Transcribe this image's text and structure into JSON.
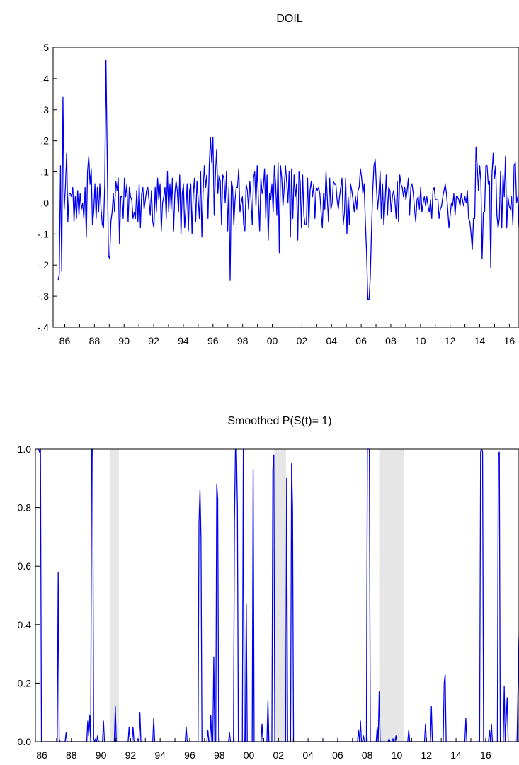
{
  "chart_data": [
    {
      "type": "line",
      "title": "DOIL",
      "xlabel": "",
      "ylabel": "",
      "x_start": 1985.833,
      "x_end": 2016.917,
      "x_ticks": [
        "86",
        "88",
        "90",
        "92",
        "94",
        "96",
        "98",
        "00",
        "02",
        "04",
        "06",
        "08",
        "10",
        "12",
        "14",
        "16"
      ],
      "y_ticks": [
        ".5",
        ".4",
        ".3",
        ".2",
        ".1",
        ".0",
        "-.1",
        "-.2",
        "-.3",
        "-.4"
      ],
      "ylim": [
        -0.4,
        0.5
      ],
      "grid": false,
      "series": [
        {
          "color": "#0000ee",
          "values": [
            -0.25,
            -0.23,
            0.12,
            -0.22,
            0.34,
            -0.02,
            0.05,
            0.16,
            -0.06,
            0.03,
            0.03,
            0.02,
            0.05,
            -0.06,
            0.02,
            -0.05,
            0.04,
            -0.04,
            0.03,
            -0.02,
            0.0,
            -0.05,
            0.05,
            -0.11,
            0.1,
            0.15,
            0.06,
            0.11,
            -0.07,
            -0.03,
            0.06,
            -0.05,
            0.05,
            -0.03,
            0.06,
            -0.02,
            -0.07,
            -0.08,
            0.06,
            0.46,
            0.15,
            -0.17,
            -0.18,
            -0.06,
            -0.03,
            0.03,
            -0.03,
            0.07,
            0.04,
            0.08,
            -0.13,
            0.02,
            0.02,
            -0.05,
            0.08,
            0.02,
            0.06,
            -0.06,
            0.05,
            0.02,
            0.01,
            -0.05,
            -0.03,
            -0.05,
            0.04,
            -0.06,
            0.06,
            -0.08,
            0.03,
            0.05,
            -0.02,
            0.01,
            0.04,
            0.05,
            0.01,
            -0.04,
            0.04,
            -0.06,
            -0.08,
            0.05,
            -0.03,
            0.08,
            0.01,
            0.06,
            -0.09,
            0.0,
            0.02,
            0.05,
            -0.05,
            0.1,
            -0.03,
            0.06,
            -0.02,
            0.08,
            -0.09,
            0.03,
            0.07,
            0.04,
            -0.03,
            0.09,
            -0.1,
            0.03,
            0.06,
            -0.08,
            -0.02,
            0.06,
            -0.09,
            0.04,
            0.06,
            -0.1,
            0.03,
            0.08,
            -0.06,
            0.07,
            0.01,
            -0.05,
            0.1,
            -0.11,
            0.04,
            0.12,
            0.05,
            0.09,
            -0.05,
            0.12,
            0.21,
            0.13,
            0.21,
            -0.04,
            0.09,
            0.17,
            0.03,
            0.09,
            0.07,
            -0.07,
            0.09,
            0.08,
            0.0,
            0.1,
            -0.09,
            0.05,
            -0.25,
            0.07,
            0.05,
            -0.07,
            0.01,
            0.05,
            0.05,
            0.11,
            -0.03,
            0.0,
            0.02,
            -0.07,
            -0.09,
            0.06,
            0.04,
            -0.02,
            0.07,
            0.01,
            -0.07,
            0.08,
            0.1,
            -0.01,
            0.12,
            0.01,
            -0.09,
            0.08,
            0.03,
            0.05,
            0.11,
            -0.05,
            0.09,
            -0.12,
            0.03,
            0.01,
            0.06,
            -0.03,
            0.12,
            0.06,
            -0.04,
            0.13,
            -0.16,
            0.12,
            0.08,
            -0.01,
            0.05,
            0.12,
            0.07,
            0.0,
            0.1,
            -0.11,
            0.11,
            -0.05,
            0.09,
            0.02,
            0.06,
            -0.12,
            0.1,
            0.07,
            -0.08,
            0.09,
            -0.04,
            -0.07,
            -0.07,
            0.08,
            -0.08,
            0.04,
            0.07,
            0.02,
            0.06,
            -0.05,
            0.05,
            0.04,
            0.05,
            0.03,
            -0.03,
            -0.08,
            0.03,
            -0.02,
            0.1,
            0.02,
            -0.06,
            0.08,
            -0.02,
            0.0,
            0.07,
            0.06,
            0.06,
            0.01,
            -0.02,
            0.02,
            0.05,
            0.08,
            -0.07,
            -0.03,
            0.08,
            -0.1,
            0.02,
            -0.07,
            0.06,
            0.04,
            0.01,
            -0.03,
            0.02,
            -0.02,
            0.04,
            0.05,
            0.11,
            0.08,
            0.03,
            0.06,
            -0.06,
            -0.16,
            -0.31,
            -0.31,
            -0.24,
            -0.09,
            0.04,
            0.12,
            0.14,
            0.05,
            -0.02,
            0.03,
            0.1,
            -0.05,
            0.06,
            -0.07,
            0.0,
            0.09,
            -0.04,
            0.05,
            0.04,
            -0.03,
            0.02,
            0.04,
            0.01,
            -0.05,
            0.07,
            -0.06,
            0.09,
            0.06,
            0.05,
            0.02,
            0.05,
            0.01,
            0.04,
            0.08,
            -0.04,
            0.05,
            0.06,
            0.03,
            -0.02,
            -0.06,
            0.01,
            0.02,
            -0.02,
            0.05,
            -0.03,
            0.0,
            0.02,
            -0.01,
            0.02,
            -0.01,
            -0.03,
            0.01,
            -0.05,
            0.04,
            0.05,
            0.01,
            0.01,
            0.01,
            -0.05,
            -0.02,
            -0.01,
            0.02,
            0.04,
            0.06,
            0.03,
            -0.02,
            -0.08,
            -0.04,
            0.0,
            -0.01,
            0.03,
            -0.04,
            0.02,
            0.02,
            0.01,
            -0.01,
            0.03,
            0.01,
            -0.01,
            0.02,
            0.0,
            0.04,
            -0.05,
            -0.06,
            -0.1,
            -0.15,
            -0.05,
            -0.05,
            0.18,
            0.12,
            0.04,
            0.12,
            0.07,
            -0.18,
            -0.03,
            -0.03,
            0.12,
            0.12,
            0.06,
            0.07,
            -0.21,
            0.09,
            0.16,
            0.08,
            0.12,
            -0.04,
            -0.08,
            -0.05,
            0.1,
            -0.08,
            0.09,
            0.02,
            0.15,
            -0.08,
            0.02,
            -0.01,
            -0.02,
            0.02,
            -0.07,
            0.12,
            0.13,
            0.0,
            0.02,
            -0.08
          ]
        }
      ]
    },
    {
      "type": "line",
      "title": "Smoothed P(S(t)= 1)",
      "xlabel": "",
      "ylabel": "",
      "x_start": 1986.0,
      "x_end": 2016.917,
      "x_ticks": [
        "86",
        "88",
        "90",
        "92",
        "94",
        "96",
        "98",
        "00",
        "02",
        "04",
        "06",
        "08",
        "10",
        "12",
        "14",
        "16"
      ],
      "y_ticks": [
        "1.0",
        "0.8",
        "0.6",
        "0.4",
        "0.2",
        "0.0"
      ],
      "ylim": [
        0,
        1
      ],
      "grid": false,
      "shaded_periods": [
        [
          1990.58,
          1991.17
        ],
        [
          2001.17,
          2001.92
        ],
        [
          2007.92,
          2009.5
        ]
      ],
      "series": [
        {
          "color": "#0000ee",
          "values": [
            1.0,
            0.99,
            1.0,
            0.0,
            0.0,
            0.0,
            0.0,
            0.0,
            0.0,
            0.0,
            0.0,
            0.0,
            0.0,
            0.0,
            0.0,
            0.0,
            0.0,
            0.0,
            0.0,
            0.0,
            0.58,
            0.01,
            0.0,
            0.0,
            0.0,
            0.0,
            0.0,
            0.0,
            0.03,
            0.0,
            0.0,
            0.0,
            0.0,
            0.0,
            0.0,
            0.0,
            0.0,
            0.0,
            0.0,
            0.0,
            0.0,
            0.0,
            0.0,
            0.0,
            0.0,
            0.0,
            0.0,
            0.0,
            0.0,
            0.0,
            0.07,
            0.02,
            0.09,
            0.0,
            1.0,
            1.0,
            0.01,
            0.0,
            0.01,
            0.0,
            0.02,
            0.0,
            0.0,
            0.0,
            0.0,
            0.0,
            0.07,
            0.0,
            0.0,
            0.0,
            0.0,
            0.0,
            0.0,
            0.0,
            0.0,
            0.0,
            0.0,
            0.0,
            0.12,
            0.0,
            0.0,
            0.0,
            0.0,
            0.0,
            0.0,
            0.0,
            0.0,
            0.0,
            0.0,
            0.0,
            0.0,
            0.0,
            0.05,
            0.0,
            0.0,
            0.0,
            0.05,
            0.0,
            0.0,
            0.0,
            0.0,
            0.01,
            0.0,
            0.1,
            0.0,
            0.0,
            0.0,
            0.0,
            0.0,
            0.0,
            0.0,
            0.0,
            0.0,
            0.0,
            0.0,
            0.0,
            0.0,
            0.08,
            0.0,
            0.0,
            0.0,
            0.0,
            0.0,
            0.0,
            0.0,
            0.0,
            0.0,
            0.0,
            0.0,
            0.0,
            0.0,
            0.0,
            0.0,
            0.0,
            0.0,
            0.0,
            0.0,
            0.0,
            0.0,
            0.0,
            0.0,
            0.0,
            0.0,
            0.0,
            0.0,
            0.0,
            0.0,
            0.0,
            0.0,
            0.0,
            0.05,
            0.0,
            0.0,
            0.0,
            0.0,
            0.0,
            0.0,
            0.0,
            0.0,
            0.0,
            0.0,
            0.0,
            0.0,
            0.75,
            0.86,
            0.7,
            0.0,
            0.0,
            0.0,
            0.0,
            0.0,
            0.0,
            0.04,
            0.0,
            0.0,
            0.09,
            0.0,
            0.0,
            0.29,
            0.0,
            0.0,
            0.88,
            0.83,
            0.0,
            0.0,
            0.0,
            0.0,
            0.0,
            0.0,
            0.0,
            0.0,
            0.0,
            0.0,
            0.0,
            0.03,
            0.0,
            0.0,
            0.0,
            0.0,
            0.75,
            1.0,
            1.0,
            0.8,
            0.0,
            0.0,
            0.0,
            0.0,
            0.0,
            1.0,
            0.0,
            0.0,
            0.47,
            0.0,
            0.0,
            0.0,
            0.0,
            0.0,
            0.0,
            0.93,
            0.0,
            0.0,
            0.0,
            0.0,
            0.0,
            0.0,
            0.0,
            0.0,
            0.06,
            0.0,
            0.0,
            0.0,
            0.0,
            0.0,
            0.14,
            0.0,
            0.0,
            0.0,
            0.0,
            0.93,
            0.98,
            0.0,
            0.0,
            0.0,
            0.0,
            0.0,
            0.0,
            0.0,
            0.0,
            0.0,
            0.0,
            0.0,
            0.0,
            0.9,
            0.0,
            0.0,
            0.0,
            0.0,
            0.95,
            0.8,
            0.0,
            0.0,
            0.0,
            0.0,
            0.0,
            0.0,
            0.0,
            0.0,
            0.0,
            0.0,
            0.0,
            0.0,
            0.0,
            0.0,
            0.0,
            0.0,
            0.0,
            0.0,
            0.0,
            0.0,
            0.0,
            0.0,
            0.0,
            0.0,
            0.0,
            0.0,
            0.0,
            0.0,
            0.0,
            0.0,
            0.0,
            0.0,
            0.0,
            0.0,
            0.0,
            0.0,
            0.0,
            0.0,
            0.0,
            0.0,
            0.0,
            0.0,
            0.0,
            0.0,
            0.0,
            0.0,
            0.0,
            0.0,
            0.0,
            0.0,
            0.0,
            0.0,
            0.0,
            0.0,
            0.0,
            0.0,
            0.0,
            0.0,
            0.0,
            0.0,
            0.0,
            0.0,
            0.0,
            0.0,
            0.0,
            0.0,
            0.04,
            0.0,
            0.07,
            0.0,
            0.0,
            0.02,
            0.0,
            0.0,
            0.0,
            1.0,
            1.0,
            1.0,
            0.0,
            0.0,
            0.0,
            0.0,
            0.0,
            0.0,
            0.0,
            0.05,
            0.0,
            0.17,
            0.0,
            0.0,
            0.0,
            0.0,
            0.0,
            0.0,
            0.0,
            0.0,
            0.0,
            0.01,
            0.0,
            0.0,
            0.0,
            0.01,
            0.0,
            0.0,
            0.02,
            0.0,
            0.0,
            0.0,
            0.0,
            0.0,
            0.0,
            0.0,
            0.0,
            0.0,
            0.0,
            0.0,
            0.0,
            0.04,
            0.0,
            0.0,
            0.0,
            0.0,
            0.0,
            0.0,
            0.0,
            0.0,
            0.0,
            0.0,
            0.0,
            0.0,
            0.0,
            0.0,
            0.0,
            0.0,
            0.06,
            0.0,
            0.0,
            0.0,
            0.0,
            0.0,
            0.12,
            0.0,
            0.0,
            0.0,
            0.0,
            0.0,
            0.0,
            0.0,
            0.0,
            0.0,
            0.0,
            0.0,
            0.0,
            0.2,
            0.23,
            0.0,
            0.0,
            0.0,
            0.0,
            0.0,
            0.0,
            0.0,
            0.0,
            0.0,
            0.0,
            0.0,
            0.0,
            0.0,
            0.0,
            0.0,
            0.0,
            0.0,
            0.0,
            0.0,
            0.0,
            0.08,
            0.0,
            0.0,
            0.0,
            0.0,
            0.0,
            0.0,
            0.0,
            0.0,
            0.0,
            0.0,
            0.0,
            0.0,
            0.0,
            0.0,
            0.99,
            1.0,
            0.99,
            0.0,
            0.0,
            0.0,
            0.0,
            0.0,
            0.0,
            0.04,
            0.0,
            0.06,
            0.0,
            0.0,
            0.0,
            0.0,
            0.0,
            0.0,
            0.98,
            0.99,
            0.0,
            0.0,
            0.0,
            0.0,
            0.19,
            0.0,
            0.08,
            0.15,
            0.0,
            0.0,
            0.0,
            0.0,
            0.0,
            0.0,
            0.0,
            0.0,
            0.0,
            0.0,
            0.18,
            0.36
          ]
        }
      ]
    }
  ]
}
